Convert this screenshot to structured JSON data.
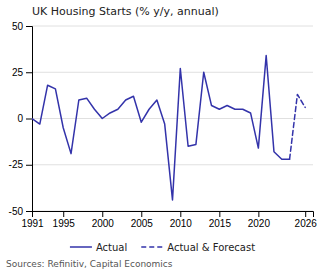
{
  "chart_data": {
    "type": "line",
    "title": "UK Housing Starts (% y/y, annual)",
    "source": "Sources: Refinitiv, Capital Economics",
    "x": [
      1991,
      1992,
      1993,
      1994,
      1995,
      1996,
      1997,
      1998,
      1999,
      2000,
      2001,
      2002,
      2003,
      2004,
      2005,
      2006,
      2007,
      2008,
      2009,
      2010,
      2011,
      2012,
      2013,
      2014,
      2015,
      2016,
      2017,
      2018,
      2019,
      2020,
      2021,
      2022,
      2023,
      2024,
      2025,
      2026
    ],
    "series": [
      {
        "name": "Actual",
        "color": "#3333aa",
        "line_style": "solid",
        "values": [
          0,
          -3,
          18,
          16,
          -5,
          -19,
          10,
          11,
          5,
          0,
          3,
          5,
          10,
          12,
          -2,
          5,
          10,
          -3,
          -44,
          27,
          -15,
          -14,
          25,
          7,
          5,
          7,
          5,
          5,
          3,
          -16,
          34,
          -18,
          -22,
          -22,
          null,
          null
        ]
      },
      {
        "name": "Actual & Forecast",
        "color": "#3333aa",
        "line_style": "dashed",
        "values": [
          null,
          null,
          null,
          null,
          null,
          null,
          null,
          null,
          null,
          null,
          null,
          null,
          null,
          null,
          null,
          null,
          null,
          null,
          null,
          null,
          null,
          null,
          null,
          null,
          null,
          null,
          null,
          null,
          null,
          null,
          null,
          null,
          null,
          -22,
          13,
          6
        ]
      }
    ],
    "xlim": [
      1991,
      2027
    ],
    "xticks": [
      1991,
      1995,
      2000,
      2005,
      2010,
      2015,
      2020,
      2026
    ],
    "ylim": [
      -50,
      50
    ],
    "yticks": [
      -50,
      -25,
      0,
      25,
      50
    ],
    "grid": true,
    "legend": "bottom"
  }
}
